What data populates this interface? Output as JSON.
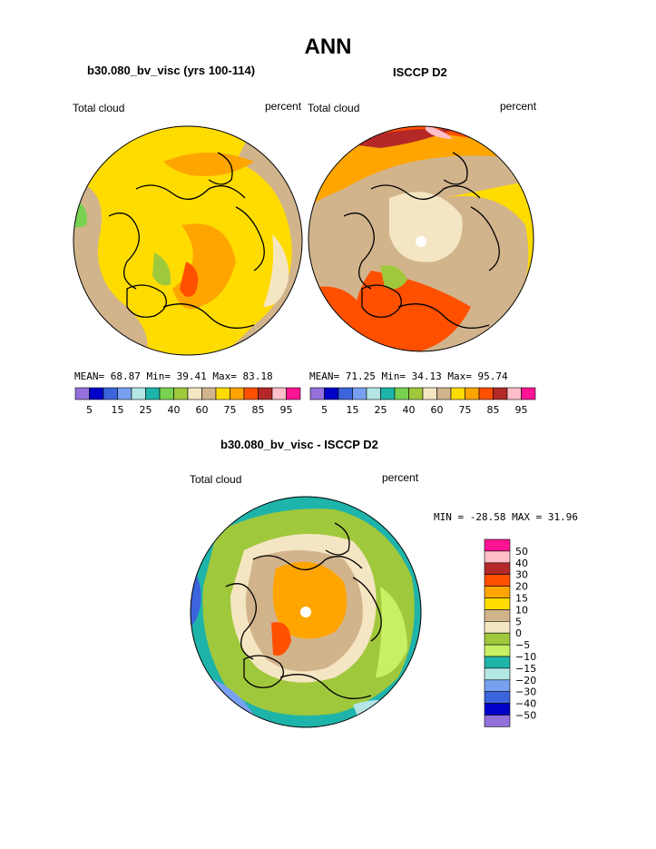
{
  "page": {
    "title": "ANN"
  },
  "left_map": {
    "case": "b30.080_bv_visc (yrs 100-114)",
    "field": "Total cloud",
    "units": "percent",
    "mean_label": "MEAN=",
    "mean": "68.87",
    "min_label": "Min=",
    "min": "39.41",
    "max_label": "Max=",
    "max": "83.18"
  },
  "right_map": {
    "case": "ISCCP D2",
    "field": "Total cloud",
    "units": "percent",
    "mean_label": "MEAN=",
    "mean": "71.25",
    "min_label": "Min=",
    "min": "34.13",
    "max_label": "Max=",
    "max": "95.74"
  },
  "abs_colorbar": {
    "colors": [
      "#9370db",
      "#0000c8",
      "#3c64dc",
      "#78a0f0",
      "#b4e6e6",
      "#1eb4aa",
      "#78d250",
      "#a0c83c",
      "#f5e6c3",
      "#d2b48c",
      "#ffdc00",
      "#ffa500",
      "#ff5000",
      "#b42828",
      "#ffbec8",
      "#ff1493"
    ],
    "tick_labels": [
      "5",
      "15",
      "25",
      "40",
      "60",
      "75",
      "85",
      "95"
    ]
  },
  "diff_map": {
    "title": "b30.080_bv_visc - ISCCP D2",
    "field": "Total cloud",
    "units": "percent",
    "minmax_text": "MIN = -28.58 MAX =  31.96"
  },
  "diff_colorbar": {
    "colors": [
      "#ff1493",
      "#ffbec8",
      "#b42828",
      "#ff5000",
      "#ffa500",
      "#ffdc00",
      "#d2b48c",
      "#f5e6c3",
      "#a0c83c",
      "#c8f064",
      "#1eb4aa",
      "#b4e6e6",
      "#78a0f0",
      "#3c64dc",
      "#0000c8",
      "#9370db"
    ],
    "tick_labels": [
      "50",
      "40",
      "30",
      "20",
      "15",
      "10",
      "5",
      "0",
      "−5",
      "−10",
      "−15",
      "−20",
      "−30",
      "−40",
      "−50"
    ]
  }
}
